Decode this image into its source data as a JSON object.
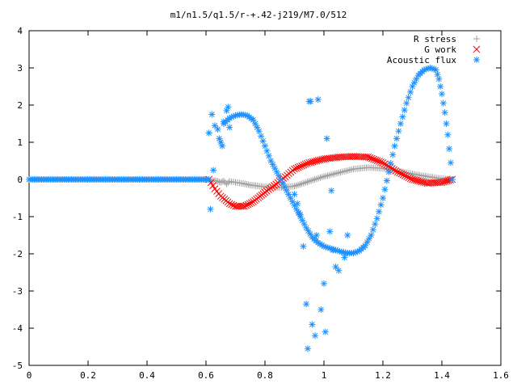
{
  "chart_data": {
    "type": "scatter",
    "title": "m1/n1.5/q1.5/r-+.42-j219/M7.0/512",
    "xlabel": "",
    "ylabel": "",
    "xlim": [
      0,
      1.6
    ],
    "ylim": [
      -5,
      4
    ],
    "xticks": [
      "0",
      "0.2",
      "0.4",
      "0.6",
      "0.8",
      "1",
      "1.2",
      "1.4",
      "1.6"
    ],
    "yticks": [
      "4",
      "3",
      "2",
      "1",
      "0",
      "-1",
      "-2",
      "-3",
      "-4",
      "-5"
    ],
    "grid": false,
    "legend_position": "top-right",
    "series": [
      {
        "name": "R stress",
        "marker": "+",
        "color": "#a0a0a0",
        "x": [
          0.61,
          0.62,
          0.63,
          0.64,
          0.65,
          0.66,
          0.67,
          0.68,
          0.7,
          0.72,
          0.75,
          0.8,
          0.85,
          0.9,
          0.95,
          1.0,
          1.05,
          1.1,
          1.15,
          1.2,
          1.25,
          1.3,
          1.35,
          1.4,
          1.435
        ],
        "y": [
          0.0,
          -0.05,
          -0.03,
          -0.05,
          -0.08,
          -0.04,
          -0.12,
          -0.05,
          -0.08,
          -0.1,
          -0.15,
          -0.2,
          -0.22,
          -0.18,
          -0.05,
          0.08,
          0.18,
          0.28,
          0.32,
          0.3,
          0.22,
          0.15,
          0.08,
          0.02,
          0.0
        ]
      },
      {
        "name": "G work",
        "marker": "x",
        "color": "#ff0000",
        "x": [
          0.61,
          0.63,
          0.65,
          0.68,
          0.7,
          0.73,
          0.76,
          0.8,
          0.85,
          0.9,
          0.95,
          1.0,
          1.05,
          1.1,
          1.15,
          1.2,
          1.25,
          1.3,
          1.35,
          1.4,
          1.435
        ],
        "y": [
          0.0,
          -0.25,
          -0.45,
          -0.65,
          -0.72,
          -0.72,
          -0.6,
          -0.35,
          -0.05,
          0.28,
          0.45,
          0.55,
          0.6,
          0.62,
          0.6,
          0.45,
          0.2,
          0.0,
          -0.1,
          -0.08,
          0.0
        ]
      },
      {
        "name": "Acoustic flux",
        "marker": "*",
        "color": "#1e90ff",
        "x": [
          0.66,
          0.68,
          0.7,
          0.72,
          0.74,
          0.76,
          0.78,
          0.8,
          0.82,
          0.84,
          0.86,
          0.88,
          0.9,
          0.92,
          0.94,
          0.96,
          0.98,
          1.0,
          1.02,
          1.04,
          1.06,
          1.08,
          1.1,
          1.12,
          1.14,
          1.16,
          1.18,
          1.2,
          1.22,
          1.24,
          1.26,
          1.28,
          1.3,
          1.32,
          1.34,
          1.36,
          1.38,
          1.39,
          1.4,
          1.41,
          1.42,
          1.43,
          1.435
        ],
        "y": [
          1.5,
          1.65,
          1.72,
          1.75,
          1.72,
          1.6,
          1.3,
          0.9,
          0.5,
          0.2,
          -0.1,
          -0.4,
          -0.7,
          -1.0,
          -1.3,
          -1.55,
          -1.7,
          -1.8,
          -1.85,
          -1.9,
          -1.95,
          -1.98,
          -1.98,
          -1.92,
          -1.78,
          -1.5,
          -1.05,
          -0.5,
          0.2,
          0.9,
          1.5,
          2.05,
          2.5,
          2.8,
          2.95,
          3.0,
          2.95,
          2.7,
          2.3,
          1.8,
          1.2,
          0.45,
          0.0
        ]
      },
      {
        "name": "",
        "marker": "*",
        "color": "#1e90ff",
        "x": [
          0.61,
          0.615,
          0.62,
          0.625,
          0.63,
          0.64,
          0.645,
          0.65,
          0.655,
          0.66,
          0.67,
          0.675,
          0.68,
          0.9,
          0.91,
          0.915,
          0.92,
          0.93,
          0.94,
          0.945,
          0.95,
          0.955,
          0.96,
          0.97,
          0.975,
          0.98,
          0.99,
          1.0,
          1.005,
          1.01,
          1.02,
          1.025,
          1.03,
          1.04,
          1.05,
          1.06,
          1.07,
          1.08
        ],
        "y": [
          1.25,
          -0.8,
          1.75,
          0.25,
          1.45,
          1.35,
          1.1,
          1.0,
          0.9,
          1.55,
          1.85,
          1.95,
          1.4,
          -0.4,
          -0.65,
          -0.9,
          -0.95,
          -1.8,
          -3.35,
          -4.55,
          2.1,
          2.1,
          -3.9,
          -4.2,
          -1.5,
          2.15,
          -3.5,
          -2.8,
          -4.1,
          1.1,
          -1.4,
          -0.3,
          -1.9,
          -2.35,
          -2.45,
          -1.95,
          -2.1,
          -1.5
        ]
      },
      {
        "name": "",
        "marker": "*",
        "color": "#1e90ff",
        "x": [
          0.0,
          0.05,
          0.1,
          0.15,
          0.2,
          0.25,
          0.3,
          0.35,
          0.4,
          0.45,
          0.5,
          0.55,
          0.6,
          0.61
        ],
        "y": [
          0,
          0,
          0,
          0,
          0,
          0,
          0,
          0,
          0,
          0,
          0,
          0,
          0,
          0
        ]
      }
    ]
  }
}
